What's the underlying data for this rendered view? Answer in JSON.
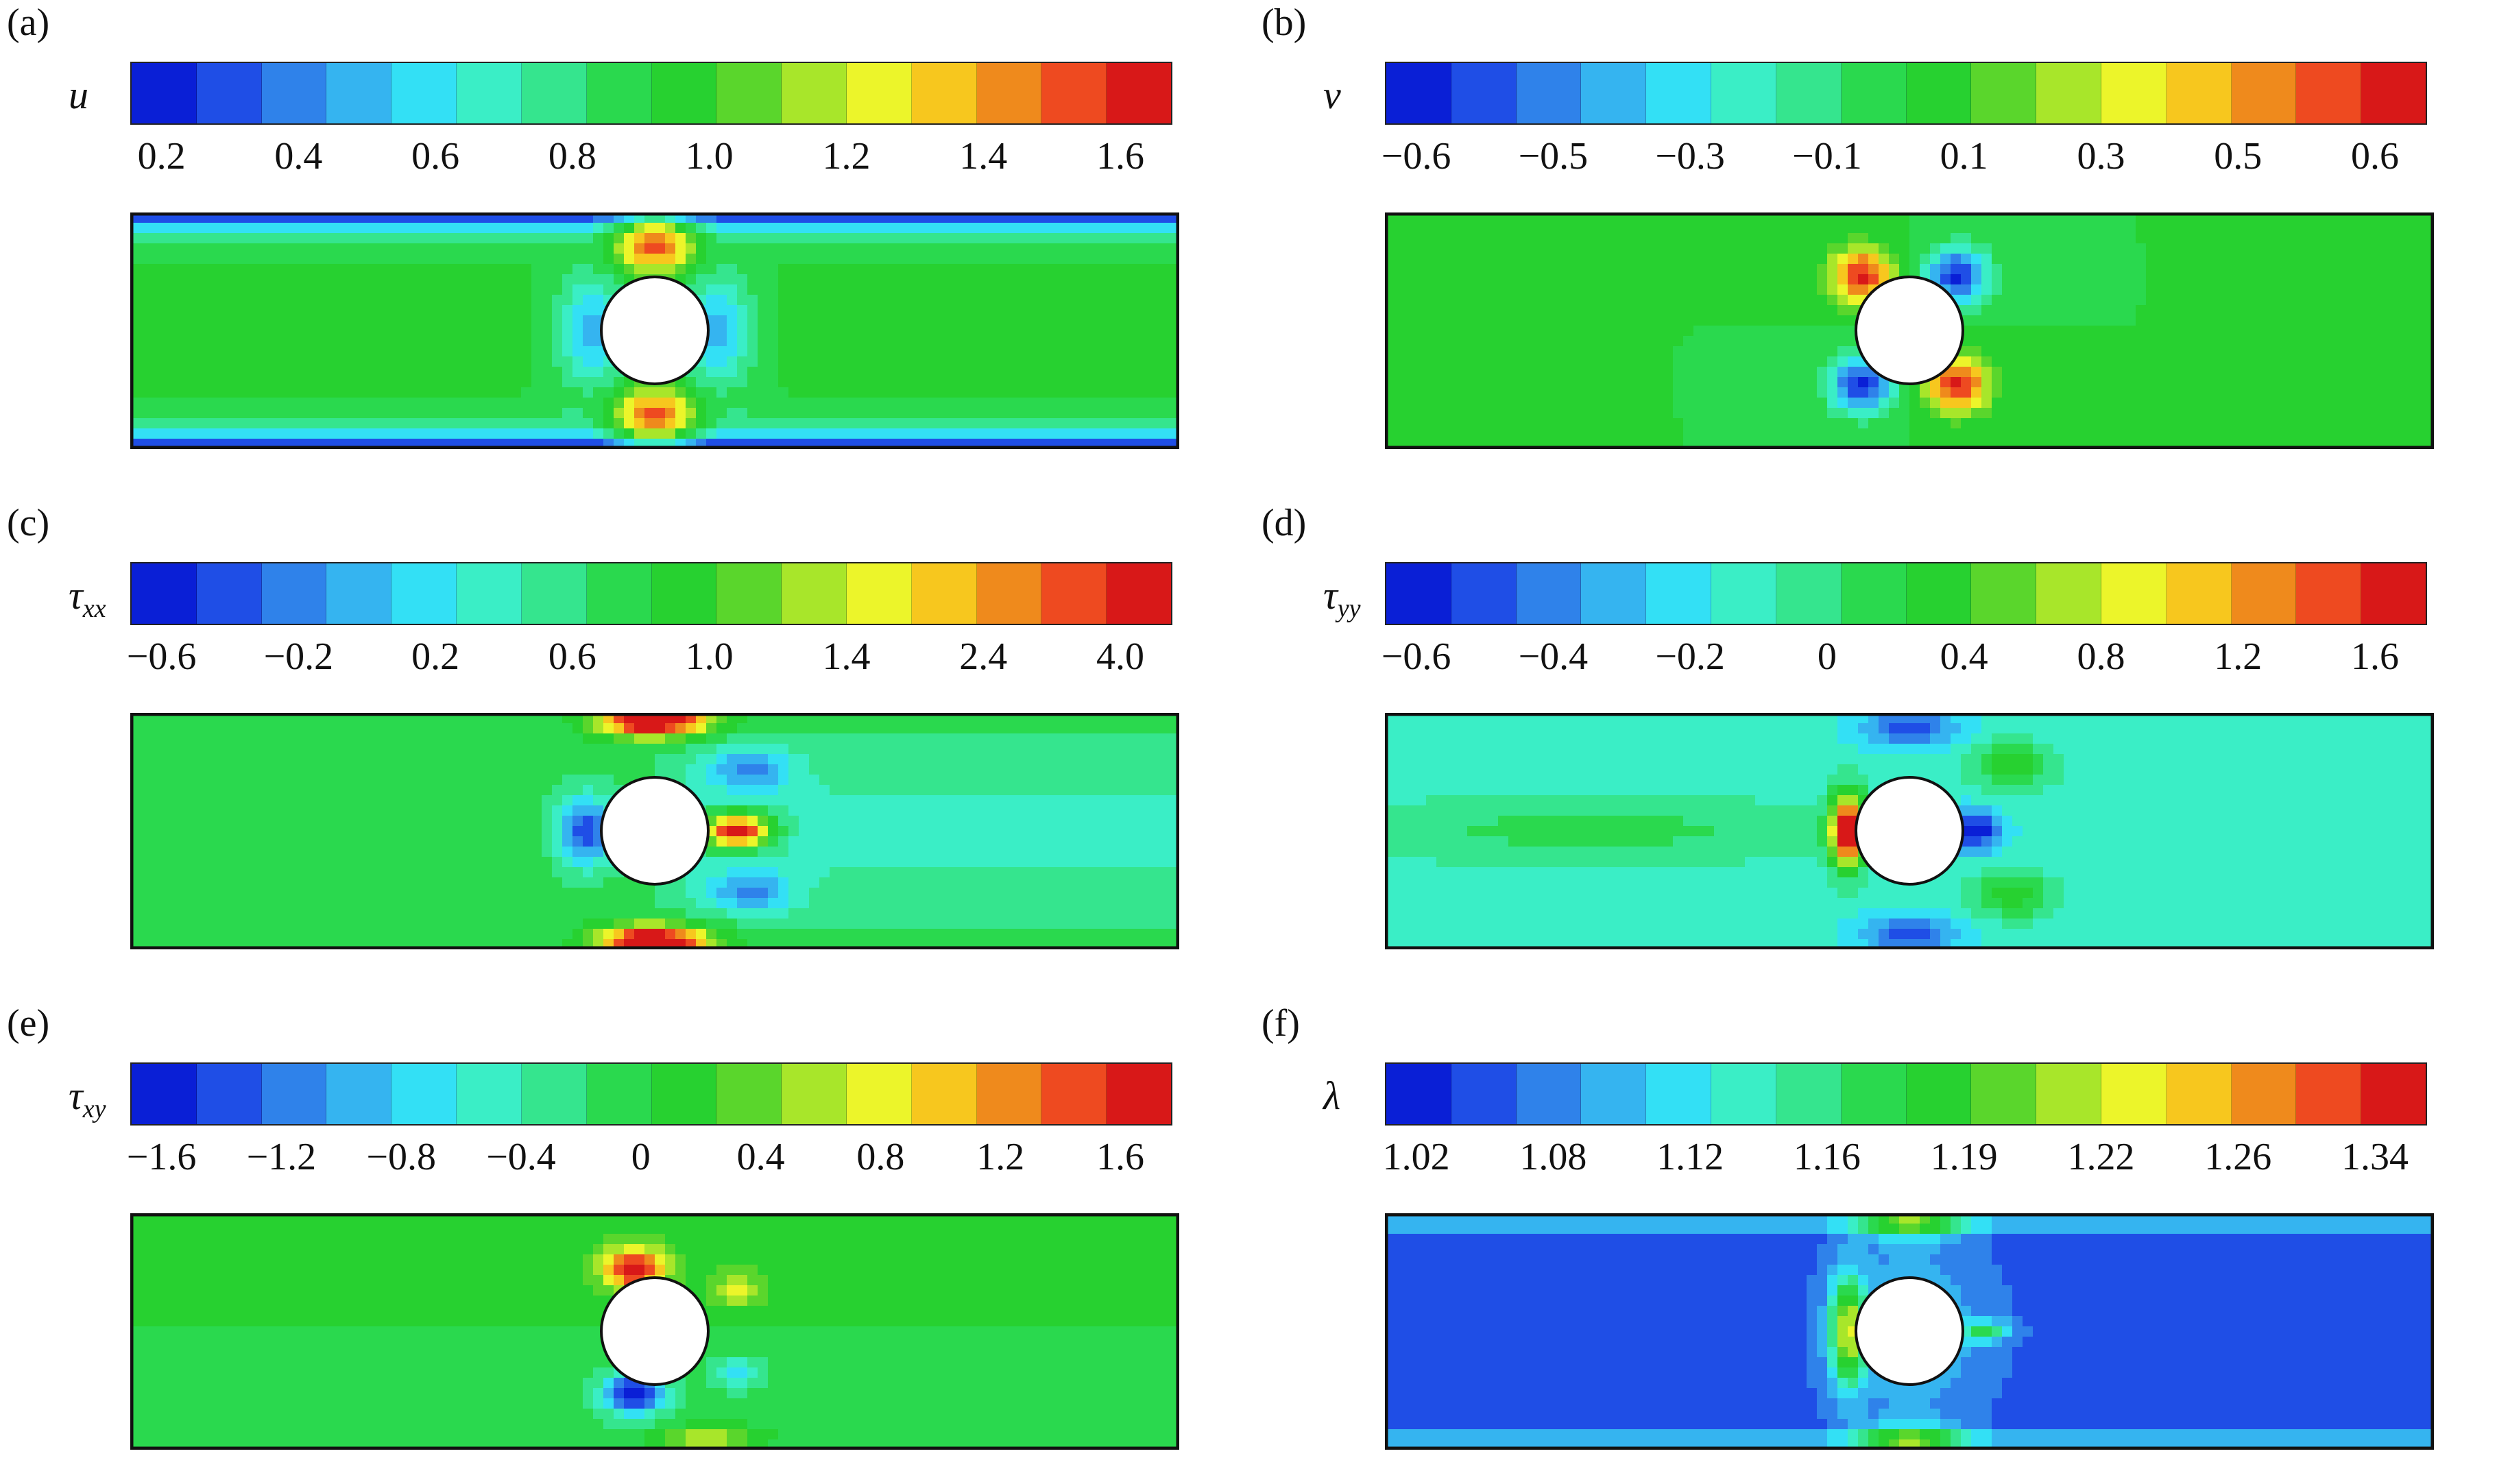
{
  "colormap": [
    "#0a1fd6",
    "#1f4ee6",
    "#2f82ea",
    "#35b4f0",
    "#33e0f5",
    "#3aeec6",
    "#35e58e",
    "#2ad94e",
    "#27d130",
    "#5ad62c",
    "#a8e62a",
    "#ecf52a",
    "#f7c71e",
    "#ef8a1c",
    "#ee4a20",
    "#d81818"
  ],
  "chart_data": [
    {
      "panel": "(a)",
      "variable": "u",
      "subscript": "",
      "type": "contour",
      "ticks": [
        "0.2",
        "0.4",
        "0.6",
        "0.8",
        "1.0",
        "1.2",
        "1.4",
        "1.6"
      ],
      "field": "u"
    },
    {
      "panel": "(b)",
      "variable": "v",
      "subscript": "",
      "type": "contour",
      "ticks": [
        "−0.6",
        "−0.5",
        "−0.3",
        "−0.1",
        "0.1",
        "0.3",
        "0.5",
        "0.6"
      ],
      "field": "v"
    },
    {
      "panel": "(c)",
      "variable": "τ",
      "subscript": "xx",
      "type": "contour",
      "ticks": [
        "−0.6",
        "−0.2",
        "0.2",
        "0.6",
        "1.0",
        "1.4",
        "2.4",
        "4.0"
      ],
      "field": "txx"
    },
    {
      "panel": "(d)",
      "variable": "τ",
      "subscript": "yy",
      "type": "contour",
      "ticks": [
        "−0.6",
        "−0.4",
        "−0.2",
        "0",
        "0.4",
        "0.8",
        "1.2",
        "1.6"
      ],
      "field": "tyy"
    },
    {
      "panel": "(e)",
      "variable": "τ",
      "subscript": "xy",
      "type": "contour",
      "ticks": [
        "−1.6",
        "−1.2",
        "−0.8",
        "−0.4",
        "0",
        "0.4",
        "0.8",
        "1.2",
        "1.6"
      ],
      "field": "txy"
    },
    {
      "panel": "(f)",
      "variable": "λ",
      "subscript": "",
      "type": "contour",
      "ticks": [
        "1.02",
        "1.08",
        "1.12",
        "1.16",
        "1.19",
        "1.22",
        "1.26",
        "1.34"
      ],
      "field": "lam"
    }
  ]
}
